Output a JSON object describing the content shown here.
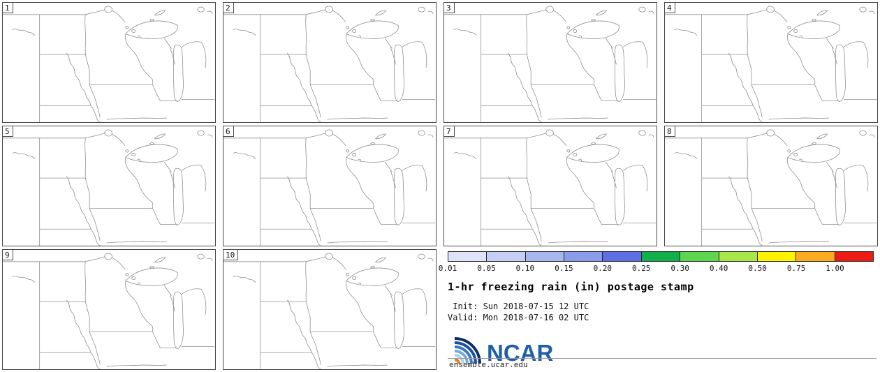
{
  "panels": [
    {
      "label": "1"
    },
    {
      "label": "2"
    },
    {
      "label": "3"
    },
    {
      "label": "4"
    },
    {
      "label": "5"
    },
    {
      "label": "6"
    },
    {
      "label": "7"
    },
    {
      "label": "8"
    },
    {
      "label": "9"
    },
    {
      "label": "10"
    }
  ],
  "legend": {
    "ticks": [
      "0.01",
      "0.05",
      "0.10",
      "0.15",
      "0.20",
      "0.25",
      "0.30",
      "0.40",
      "0.50",
      "0.75",
      "1.00"
    ],
    "colors": [
      "#dfe3f7",
      "#c5cef4",
      "#a8b6f0",
      "#8a9ceb",
      "#5f6fe6",
      "#12b04a",
      "#5ed64e",
      "#a8e64a",
      "#fdf200",
      "#fdaa1e",
      "#ec1c12"
    ],
    "title": "1-hr freezing rain (in) postage stamp",
    "init_line": " Init: Sun 2018-07-15 12 UTC",
    "valid_line": "Valid: Mon 2018-07-16 02 UTC",
    "logo_text": "NCAR",
    "site": "ensemble.ucar.edu"
  }
}
